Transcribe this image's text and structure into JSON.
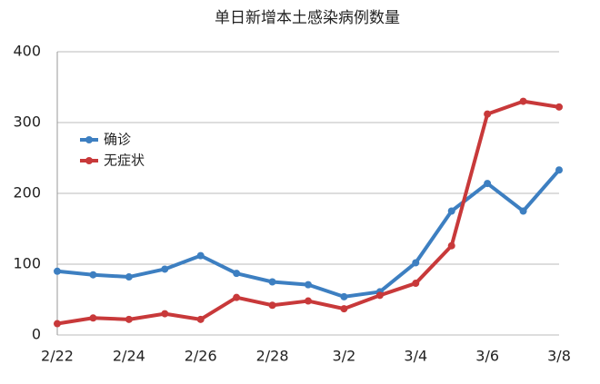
{
  "chart_data": {
    "type": "line",
    "title": "单日新增本土感染病例数量",
    "categories": [
      "2/22",
      null,
      "2/24",
      null,
      "2/26",
      null,
      "2/28",
      null,
      "3/2",
      null,
      "3/4",
      null,
      "3/6",
      null,
      "3/8"
    ],
    "series": [
      {
        "name": "确诊",
        "color": "#3d7fc1",
        "values": [
          90,
          85,
          82,
          93,
          112,
          87,
          75,
          71,
          54,
          61,
          102,
          175,
          214,
          175,
          233
        ]
      },
      {
        "name": "无症状",
        "color": "#c8393a",
        "values": [
          16,
          24,
          22,
          30,
          22,
          53,
          42,
          48,
          37,
          56,
          73,
          126,
          312,
          330,
          322
        ]
      }
    ],
    "ylim": [
      0,
      400
    ],
    "yticks": [
      0,
      100,
      200,
      300,
      400
    ],
    "grid": true,
    "legend": "upper left"
  }
}
